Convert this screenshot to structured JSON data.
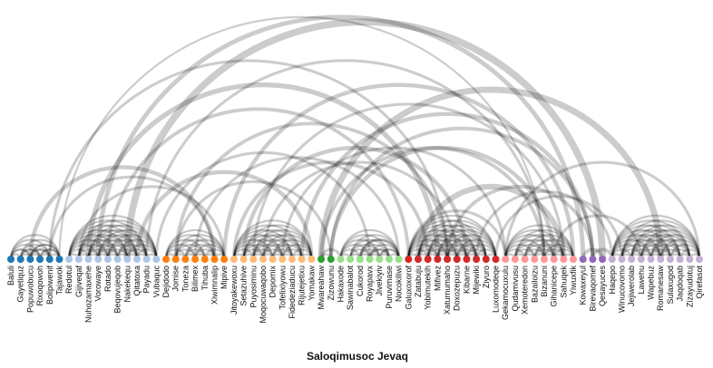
{
  "chart_data": {
    "type": "arc",
    "title": "Saloqimusoc Jevaq",
    "nodes": [
      {
        "name": "Baluli",
        "group": 0
      },
      {
        "name": "Gayetiquz",
        "group": 0
      },
      {
        "name": "Popuwobucu",
        "group": 0
      },
      {
        "name": "Rixoqowoh",
        "group": 0
      },
      {
        "name": "Bolipiwenif",
        "group": 0
      },
      {
        "name": "Tajawok",
        "group": 0
      },
      {
        "name": "Redotul",
        "group": 1
      },
      {
        "name": "Gijiveqaf",
        "group": 1
      },
      {
        "name": "Nuhozamaxehe",
        "group": 1
      },
      {
        "name": "Vorowaye",
        "group": 1
      },
      {
        "name": "Rotado",
        "group": 1
      },
      {
        "name": "Beqovujeqob",
        "group": 1
      },
      {
        "name": "Nakekequ",
        "group": 1
      },
      {
        "name": "Qitatoxa",
        "group": 1
      },
      {
        "name": "Payadu",
        "group": 1
      },
      {
        "name": "Vubaquc",
        "group": 1
      },
      {
        "name": "Dejidodo",
        "group": 2
      },
      {
        "name": "Jomise",
        "group": 2
      },
      {
        "name": "Toneza",
        "group": 2
      },
      {
        "name": "Bilimex",
        "group": 2
      },
      {
        "name": "Tihuba",
        "group": 2
      },
      {
        "name": "Xiwimnalip",
        "group": 2
      },
      {
        "name": "Mipive",
        "group": 2
      },
      {
        "name": "Jitoyakewoxu",
        "group": 3
      },
      {
        "name": "Setazuhive",
        "group": 3
      },
      {
        "name": "Puyosiminu",
        "group": 3
      },
      {
        "name": "Moqocuwaqobo",
        "group": 3
      },
      {
        "name": "Depomix",
        "group": 3
      },
      {
        "name": "Tofelixiyowu",
        "group": 3
      },
      {
        "name": "Fidedeziaducu",
        "group": 3
      },
      {
        "name": "Rijutejetixu",
        "group": 3
      },
      {
        "name": "Yomakaw",
        "group": 3
      },
      {
        "name": "Mwareahaw",
        "group": 4
      },
      {
        "name": "Zizowunu",
        "group": 4
      },
      {
        "name": "Hakaxode",
        "group": 5
      },
      {
        "name": "Sawinabalot",
        "group": 5
      },
      {
        "name": "Cukorod",
        "group": 5
      },
      {
        "name": "Royapavx",
        "group": 5
      },
      {
        "name": "Jivekiyiv",
        "group": 5
      },
      {
        "name": "Puruvimase",
        "group": 5
      },
      {
        "name": "Nocokiliwi",
        "group": 5
      },
      {
        "name": "Galuxoxorof",
        "group": 6
      },
      {
        "name": "Zatabuju",
        "group": 6
      },
      {
        "name": "Yobimutekih",
        "group": 6
      },
      {
        "name": "Mifivez",
        "group": 6
      },
      {
        "name": "Xaturnumaho",
        "group": 6
      },
      {
        "name": "Doxozepuzu",
        "group": 6
      },
      {
        "name": "Kibarne",
        "group": 6
      },
      {
        "name": "Mijewiki",
        "group": 6
      },
      {
        "name": "Ziyuro",
        "group": 6
      },
      {
        "name": "Luxomodeqe",
        "group": 6
      },
      {
        "name": "Gekamocuxulu",
        "group": 7
      },
      {
        "name": "Qudamivusu",
        "group": 7
      },
      {
        "name": "Xemoteredon",
        "group": 7
      },
      {
        "name": "Bazailoizu",
        "group": 7
      },
      {
        "name": "Bizanuni",
        "group": 7
      },
      {
        "name": "Gihanicepe",
        "group": 7
      },
      {
        "name": "Sahuqek",
        "group": 7
      },
      {
        "name": "Yiwuxfik",
        "group": 7
      },
      {
        "name": "Kowaxeyul",
        "group": 8
      },
      {
        "name": "Birevaqomef",
        "group": 8
      },
      {
        "name": "Qesayuces",
        "group": 8
      },
      {
        "name": "Haqepo",
        "group": 9
      },
      {
        "name": "Winucovomo",
        "group": 9
      },
      {
        "name": "Jejiwerolab",
        "group": 9
      },
      {
        "name": "Lawehu",
        "group": 9
      },
      {
        "name": "Wapebuz",
        "group": 9
      },
      {
        "name": "Romanesaw",
        "group": 9
      },
      {
        "name": "Sulaxugod",
        "group": 9
      },
      {
        "name": "Jaqdoqab",
        "group": 9
      },
      {
        "name": "Zizayudotuj",
        "group": 9
      },
      {
        "name": "Qirefasot",
        "group": 9
      }
    ],
    "group_colors": [
      "#1f77b4",
      "#aec7e8",
      "#ff7f0e",
      "#ffbb78",
      "#2ca02c",
      "#98df8a",
      "#d62728",
      "#ff9896",
      "#9467bd",
      "#c5b0d5"
    ],
    "links": [
      {
        "source": 0,
        "target": 2,
        "value": 1
      },
      {
        "source": 1,
        "target": 3,
        "value": 1
      },
      {
        "source": 2,
        "target": 4,
        "value": 2
      },
      {
        "source": 3,
        "target": 5,
        "value": 1
      },
      {
        "source": 2,
        "target": 5,
        "value": 1
      },
      {
        "source": 2,
        "target": 21,
        "value": 4
      },
      {
        "source": 4,
        "target": 21,
        "value": 2
      },
      {
        "source": 4,
        "target": 45,
        "value": 2
      },
      {
        "source": 8,
        "target": 44,
        "value": 6
      },
      {
        "source": 10,
        "target": 41,
        "value": 3
      },
      {
        "source": 9,
        "target": 59,
        "value": 5
      },
      {
        "source": 12,
        "target": 61,
        "value": 12
      },
      {
        "source": 14,
        "target": 55,
        "value": 2
      },
      {
        "source": 15,
        "target": 37,
        "value": 2
      },
      {
        "source": 13,
        "target": 31,
        "value": 4
      },
      {
        "source": 17,
        "target": 33,
        "value": 2
      },
      {
        "source": 17,
        "target": 45,
        "value": 3
      },
      {
        "source": 19,
        "target": 40,
        "value": 2
      },
      {
        "source": 22,
        "target": 58,
        "value": 4
      },
      {
        "source": 24,
        "target": 47,
        "value": 4
      },
      {
        "source": 26,
        "target": 46,
        "value": 2
      },
      {
        "source": 28,
        "target": 51,
        "value": 2
      },
      {
        "source": 30,
        "target": 60,
        "value": 4
      },
      {
        "source": 32,
        "target": 55,
        "value": 3
      },
      {
        "source": 33,
        "target": 56,
        "value": 4
      },
      {
        "source": 33,
        "target": 60,
        "value": 3
      },
      {
        "source": 32,
        "target": 67,
        "value": 10
      },
      {
        "source": 36,
        "target": 40,
        "value": 2
      },
      {
        "source": 37,
        "target": 39,
        "value": 2
      },
      {
        "source": 38,
        "target": 40,
        "value": 1
      },
      {
        "source": 32,
        "target": 34,
        "value": 2
      },
      {
        "source": 32,
        "target": 33,
        "value": 1
      },
      {
        "source": 42,
        "target": 57,
        "value": 8
      },
      {
        "source": 41,
        "target": 51,
        "value": 2
      },
      {
        "source": 48,
        "target": 62,
        "value": 2
      },
      {
        "source": 45,
        "target": 60,
        "value": 3
      },
      {
        "source": 50,
        "target": 63,
        "value": 2
      },
      {
        "source": 56,
        "target": 65,
        "value": 2
      },
      {
        "source": 51,
        "target": 71,
        "value": 2
      },
      {
        "source": 59,
        "target": 61,
        "value": 3
      },
      {
        "source": 60,
        "target": 62,
        "value": 3
      },
      {
        "source": 5,
        "target": 55,
        "value": 1
      },
      {
        "source": 7,
        "target": 22,
        "value": 2
      },
      {
        "source": 23,
        "target": 43,
        "value": 3
      },
      {
        "source": 25,
        "target": 57,
        "value": 2
      }
    ]
  }
}
